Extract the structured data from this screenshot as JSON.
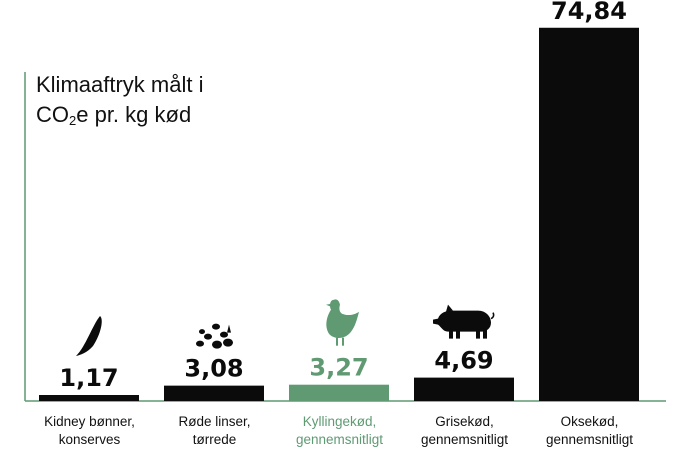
{
  "title": {
    "line1": "Klimaaftryk målt i",
    "line2_pre": "CO",
    "line2_sub": "2",
    "line2_post": "e pr. kg kød"
  },
  "colors": {
    "bar": "#0b0b0b",
    "highlight": "#5f9a73",
    "axis": "#5f9a73",
    "text": "#111111"
  },
  "chart_data": {
    "type": "bar",
    "title": "Klimaaftryk målt i CO2e pr. kg kød",
    "categories": [
      [
        "Kidney bønner,",
        "konserves"
      ],
      [
        "Røde linser,",
        "tørrede"
      ],
      [
        "Kyllingekød,",
        "gennemsnitligt"
      ],
      [
        "Grisekød,",
        "gennemsnitligt"
      ],
      [
        "Oksekød,",
        "gennemsnitligt"
      ]
    ],
    "values": [
      1.17,
      3.08,
      3.27,
      4.69,
      74.84
    ],
    "value_labels": [
      "1,17",
      "3,08",
      "3,27",
      "4,69",
      "74,84"
    ],
    "highlight_index": 2,
    "icons": [
      "bean-icon",
      "lentils-icon",
      "chicken-icon",
      "pig-icon",
      "cow-icon"
    ],
    "ylim": [
      0,
      78
    ]
  }
}
